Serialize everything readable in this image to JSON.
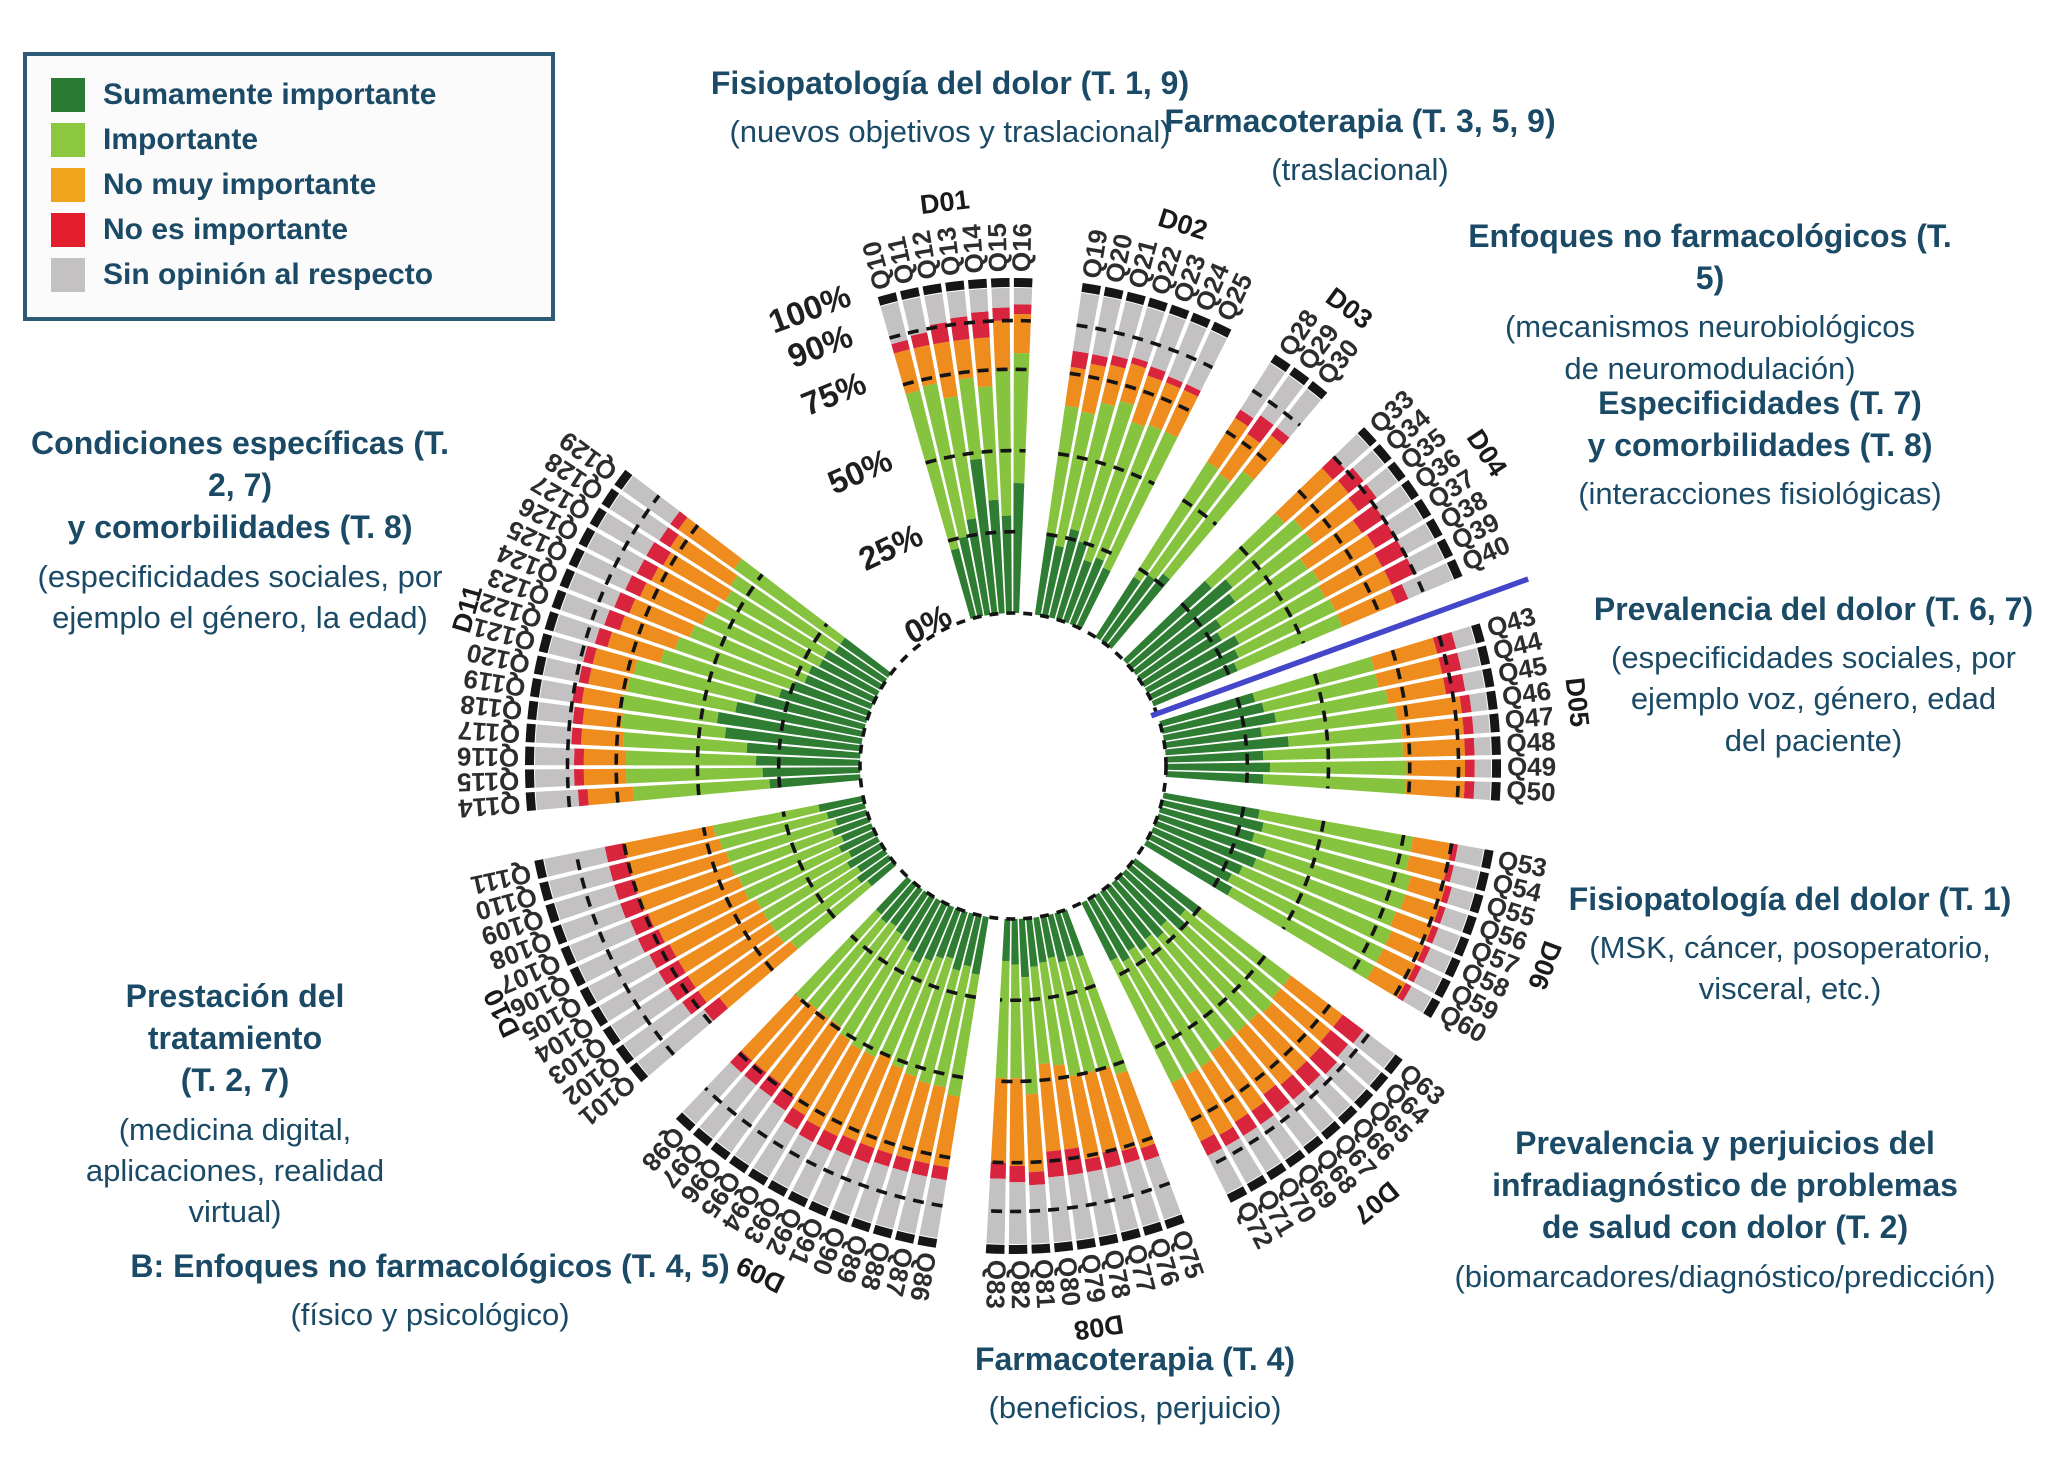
{
  "legend": {
    "items": [
      {
        "id": "sumamente_importante",
        "label": "Sumamente importante",
        "color": "#2b7a34"
      },
      {
        "id": "importante",
        "label": "Importante",
        "color": "#8dc63f"
      },
      {
        "id": "no_muy_importante",
        "label": "No muy importante",
        "color": "#f0a41d"
      },
      {
        "id": "no_es_importante",
        "label": "No es importante",
        "color": "#e31e2d"
      },
      {
        "id": "sin_opinion",
        "label": "Sin opinión al respecto",
        "color": "#c3c1c1"
      }
    ]
  },
  "chart_data": {
    "type": "radial_stacked_bar",
    "title": "",
    "units": "percent of respondents",
    "axis_ticks": [
      {
        "label": "0%",
        "value": 0
      },
      {
        "label": "25%",
        "value": 25
      },
      {
        "label": "50%",
        "value": 50
      },
      {
        "label": "75%",
        "value": 75
      },
      {
        "label": "90%",
        "value": 90
      },
      {
        "label": "100%",
        "value": 100
      }
    ],
    "reference_rings_pct": [
      25,
      50,
      75,
      90
    ],
    "series": [
      {
        "id": "sumamente_importante",
        "name": "Sumamente importante",
        "color": "#2e7d33"
      },
      {
        "id": "importante",
        "name": "Importante",
        "color": "#86c440"
      },
      {
        "id": "no_muy_importante",
        "name": "No muy importante",
        "color": "#ee8c1e"
      },
      {
        "id": "no_es_importante",
        "name": "No es importante",
        "color": "#d8243c"
      },
      {
        "id": "sin_opinion",
        "name": "Sin opinión al respecto",
        "color": "#c3c1c1"
      }
    ],
    "separator_line": {
      "color": "#4447c9",
      "between": [
        "D04",
        "D05"
      ]
    },
    "domains": [
      {
        "id": "D01",
        "questions": [
          "Q10",
          "Q11",
          "Q12",
          "Q13",
          "Q14",
          "Q15",
          "Q16"
        ],
        "values": [
          [
            22,
            50,
            13,
            3,
            12
          ],
          [
            25,
            48,
            12,
            4,
            11
          ],
          [
            30,
            38,
            17,
            6,
            9
          ],
          [
            48,
            25,
            12,
            7,
            8
          ],
          [
            35,
            35,
            15,
            8,
            7
          ],
          [
            30,
            45,
            15,
            4,
            6
          ],
          [
            40,
            40,
            12,
            3,
            5
          ]
        ]
      },
      {
        "id": "D02",
        "questions": [
          "Q19",
          "Q20",
          "Q21",
          "Q22",
          "Q23",
          "Q24",
          "Q25"
        ],
        "values": [
          [
            25,
            40,
            12,
            5,
            18
          ],
          [
            22,
            42,
            15,
            3,
            18
          ],
          [
            28,
            40,
            12,
            3,
            17
          ],
          [
            25,
            45,
            12,
            2,
            16
          ],
          [
            20,
            45,
            15,
            3,
            17
          ],
          [
            22,
            44,
            14,
            2,
            18
          ],
          [
            20,
            46,
            14,
            2,
            18
          ]
        ]
      },
      {
        "id": "D03",
        "questions": [
          "Q28",
          "Q29",
          "Q30"
        ],
        "values": [
          [
            22,
            42,
            16,
            3,
            17
          ],
          [
            25,
            38,
            15,
            7,
            15
          ],
          [
            28,
            40,
            14,
            3,
            15
          ]
        ]
      },
      {
        "id": "D04",
        "questions": [
          "Q33",
          "Q34",
          "Q35",
          "Q36",
          "Q37",
          "Q38",
          "Q39",
          "Q40"
        ],
        "values": [
          [
            35,
            30,
            20,
            5,
            10
          ],
          [
            40,
            28,
            18,
            6,
            8
          ],
          [
            38,
            30,
            17,
            7,
            8
          ],
          [
            30,
            32,
            20,
            8,
            10
          ],
          [
            28,
            35,
            20,
            7,
            10
          ],
          [
            32,
            30,
            20,
            8,
            10
          ],
          [
            30,
            33,
            19,
            8,
            10
          ],
          [
            28,
            35,
            18,
            4,
            15
          ]
        ]
      },
      {
        "id": "D05",
        "questions": [
          "Q43",
          "Q44",
          "Q45",
          "Q46",
          "Q47",
          "Q48",
          "Q49",
          "Q50"
        ],
        "values": [
          [
            30,
            38,
            20,
            6,
            6
          ],
          [
            32,
            36,
            20,
            6,
            6
          ],
          [
            35,
            35,
            18,
            6,
            6
          ],
          [
            30,
            42,
            20,
            3,
            5
          ],
          [
            38,
            35,
            19,
            3,
            5
          ],
          [
            30,
            43,
            19,
            3,
            5
          ],
          [
            32,
            42,
            18,
            3,
            5
          ],
          [
            30,
            44,
            18,
            3,
            5
          ]
        ]
      },
      {
        "id": "D06",
        "questions": [
          "Q53",
          "Q54",
          "Q55",
          "Q56",
          "Q57",
          "Q58",
          "Q59",
          "Q60"
        ],
        "values": [
          [
            30,
            48,
            12,
            2,
            8
          ],
          [
            32,
            46,
            12,
            2,
            8
          ],
          [
            30,
            50,
            11,
            2,
            7
          ],
          [
            35,
            45,
            11,
            2,
            7
          ],
          [
            33,
            46,
            12,
            2,
            7
          ],
          [
            30,
            50,
            11,
            2,
            7
          ],
          [
            28,
            52,
            11,
            2,
            7
          ],
          [
            30,
            50,
            11,
            2,
            7
          ]
        ]
      },
      {
        "id": "D07",
        "questions": [
          "Q63",
          "Q64",
          "Q65",
          "Q66",
          "Q67",
          "Q68",
          "Q69",
          "Q70",
          "Q71",
          "Q72"
        ],
        "values": [
          [
            25,
            35,
            20,
            8,
            12
          ],
          [
            22,
            38,
            20,
            7,
            13
          ],
          [
            25,
            36,
            20,
            7,
            12
          ],
          [
            20,
            40,
            21,
            6,
            13
          ],
          [
            22,
            38,
            21,
            6,
            13
          ],
          [
            20,
            40,
            20,
            7,
            13
          ],
          [
            22,
            38,
            22,
            5,
            13
          ],
          [
            20,
            42,
            20,
            5,
            13
          ],
          [
            22,
            40,
            21,
            4,
            13
          ],
          [
            20,
            42,
            20,
            5,
            13
          ]
        ]
      },
      {
        "id": "D08",
        "questions": [
          "Q75",
          "Q76",
          "Q77",
          "Q78",
          "Q79",
          "Q80",
          "Q81",
          "Q82",
          "Q83"
        ],
        "values": [
          [
            15,
            38,
            24,
            4,
            19
          ],
          [
            14,
            36,
            26,
            4,
            20
          ],
          [
            15,
            35,
            25,
            5,
            20
          ],
          [
            13,
            37,
            26,
            4,
            20
          ],
          [
            14,
            32,
            26,
            8,
            20
          ],
          [
            15,
            30,
            27,
            8,
            20
          ],
          [
            18,
            36,
            24,
            4,
            18
          ],
          [
            14,
            35,
            27,
            5,
            19
          ],
          [
            13,
            36,
            26,
            5,
            20
          ]
        ]
      },
      {
        "id": "D09",
        "questions": [
          "Q86",
          "Q87",
          "Q88",
          "Q89",
          "Q90",
          "Q91",
          "Q92",
          "Q93",
          "Q94",
          "Q95",
          "Q96",
          "Q97",
          "Q98"
        ],
        "values": [
          [
            18,
            38,
            22,
            4,
            18
          ],
          [
            16,
            38,
            24,
            4,
            18
          ],
          [
            18,
            36,
            24,
            4,
            18
          ],
          [
            15,
            38,
            25,
            4,
            18
          ],
          [
            16,
            36,
            26,
            5,
            17
          ],
          [
            18,
            32,
            28,
            5,
            17
          ],
          [
            20,
            32,
            27,
            5,
            16
          ],
          [
            18,
            34,
            27,
            5,
            16
          ],
          [
            16,
            35,
            27,
            5,
            17
          ],
          [
            15,
            34,
            26,
            5,
            20
          ],
          [
            14,
            35,
            25,
            5,
            21
          ],
          [
            15,
            34,
            25,
            5,
            21
          ],
          [
            14,
            36,
            24,
            5,
            21
          ]
        ]
      },
      {
        "id": "D10",
        "questions": [
          "Q101",
          "Q102",
          "Q103",
          "Q104",
          "Q105",
          "Q106",
          "Q107",
          "Q108",
          "Q109",
          "Q110",
          "Q111"
        ],
        "values": [
          [
            10,
            30,
            28,
            6,
            26
          ],
          [
            12,
            30,
            30,
            6,
            22
          ],
          [
            10,
            32,
            30,
            7,
            21
          ],
          [
            12,
            30,
            30,
            7,
            21
          ],
          [
            10,
            32,
            30,
            7,
            21
          ],
          [
            12,
            32,
            29,
            7,
            20
          ],
          [
            10,
            34,
            30,
            6,
            20
          ],
          [
            12,
            33,
            30,
            6,
            19
          ],
          [
            10,
            35,
            30,
            6,
            19
          ],
          [
            12,
            34,
            29,
            6,
            19
          ],
          [
            14,
            33,
            28,
            6,
            19
          ]
        ]
      },
      {
        "id": "D11",
        "questions": [
          "Q114",
          "Q115",
          "Q116",
          "Q117",
          "Q118",
          "Q119",
          "Q120",
          "Q121",
          "Q122",
          "Q123",
          "Q124",
          "Q125",
          "Q126",
          "Q127",
          "Q128",
          "Q129"
        ],
        "values": [
          [
            28,
            42,
            14,
            3,
            13
          ],
          [
            30,
            42,
            13,
            3,
            12
          ],
          [
            32,
            40,
            13,
            3,
            12
          ],
          [
            35,
            38,
            13,
            3,
            11
          ],
          [
            42,
            32,
            12,
            3,
            11
          ],
          [
            45,
            30,
            12,
            3,
            10
          ],
          [
            40,
            34,
            12,
            3,
            11
          ],
          [
            35,
            38,
            13,
            3,
            11
          ],
          [
            28,
            38,
            17,
            4,
            13
          ],
          [
            25,
            38,
            18,
            5,
            14
          ],
          [
            22,
            38,
            20,
            5,
            15
          ],
          [
            22,
            36,
            21,
            5,
            16
          ],
          [
            20,
            36,
            22,
            5,
            17
          ],
          [
            20,
            35,
            22,
            6,
            17
          ],
          [
            18,
            38,
            22,
            4,
            18
          ],
          [
            18,
            40,
            21,
            3,
            18
          ]
        ]
      }
    ]
  },
  "annotations": [
    {
      "id": "fisiopatologia-dolor-t19",
      "title": [
        "Fisiopatología del dolor (T. 1, 9)"
      ],
      "subtitle": [
        "(nuevos objetivos y traslacional)"
      ]
    },
    {
      "id": "farmacoterapia-t359",
      "title": [
        "Farmacoterapia (T. 3, 5, 9)"
      ],
      "subtitle": [
        "(traslacional)"
      ]
    },
    {
      "id": "enfoques-no-farmacologicos-t5",
      "title": [
        "Enfoques no farmacológicos (T. 5)"
      ],
      "subtitle": [
        "(mecanismos neurobiológicos",
        "de neuromodulación)"
      ]
    },
    {
      "id": "especificidades-comorbilidades",
      "title": [
        "Especificidades (T. 7)",
        "y comorbilidades (T. 8)"
      ],
      "subtitle": [
        "(interacciones fisiológicas)"
      ]
    },
    {
      "id": "prevalencia-del-dolor-t67",
      "title": [
        "Prevalencia del dolor (T. 6, 7)"
      ],
      "subtitle": [
        "(especificidades sociales, por",
        "ejemplo voz, género, edad",
        "del paciente)"
      ]
    },
    {
      "id": "fisiopatologia-dolor-t1",
      "title": [
        "Fisiopatología del dolor (T. 1)"
      ],
      "subtitle": [
        "(MSK, cáncer, posoperatorio,",
        "visceral, etc.)"
      ]
    },
    {
      "id": "prevalencia-perjuicios-t2",
      "title": [
        "Prevalencia y perjuicios del",
        "infradiagnóstico de problemas",
        "de salud con dolor (T. 2)"
      ],
      "subtitle": [
        "(biomarcadores/diagnóstico/predicción)"
      ]
    },
    {
      "id": "farmacoterapia-t4",
      "title": [
        "Farmacoterapia (T. 4)"
      ],
      "subtitle": [
        "(beneficios, perjuicio)"
      ]
    },
    {
      "id": "enfoques-no-farmacologicos-t45",
      "title": [
        "B: Enfoques no farmacológicos (T. 4, 5)"
      ],
      "subtitle": [
        "(físico y psicológico)"
      ]
    },
    {
      "id": "prestacion-del-tratamiento",
      "title": [
        "Prestación del tratamiento",
        "(T. 2, 7)"
      ],
      "subtitle": [
        "(medicina digital,",
        "aplicaciones, realidad",
        "virtual)"
      ]
    },
    {
      "id": "condiciones-especificas",
      "title": [
        "Condiciones específicas (T. 2, 7)",
        "y comorbilidades (T. 8)"
      ],
      "subtitle": [
        "(especificidades sociales, por",
        "ejemplo el género, la edad)"
      ]
    }
  ]
}
